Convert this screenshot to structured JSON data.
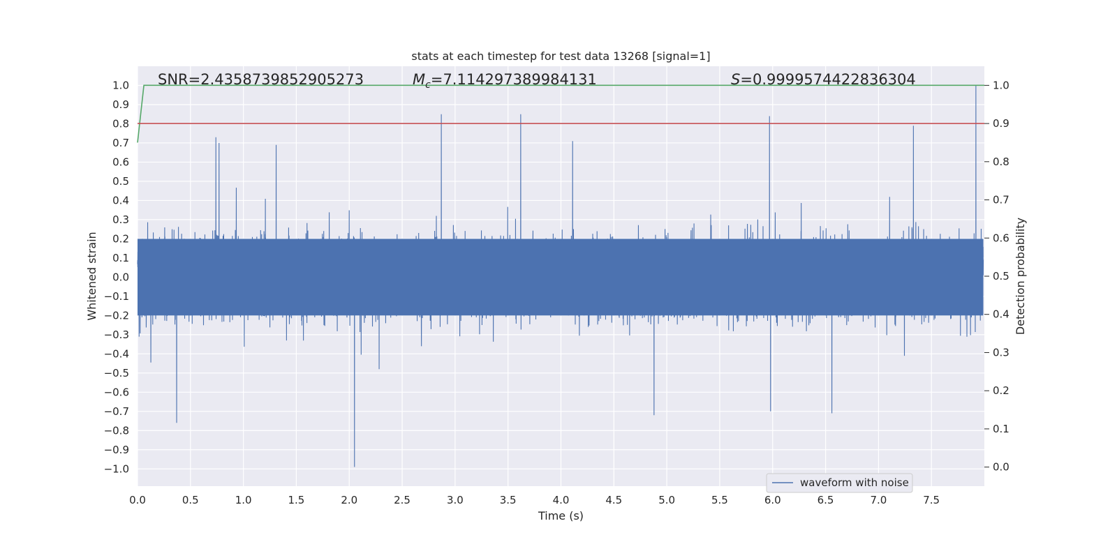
{
  "chart_data": {
    "type": "line",
    "title": "stats at each timestep for test data 13268 [signal=1]",
    "xlabel": "Time (s)",
    "ylabel_left": "Whitened strain",
    "ylabel_right": "Detection probability",
    "xlim": [
      0.0,
      8.0
    ],
    "ylim_left": [
      -1.09,
      1.1
    ],
    "ylim_right": [
      -0.05,
      1.05
    ],
    "xticks": [
      "0.0",
      "0.5",
      "1.0",
      "1.5",
      "2.0",
      "2.5",
      "3.0",
      "3.5",
      "4.0",
      "4.5",
      "5.0",
      "5.5",
      "6.0",
      "6.5",
      "7.0",
      "7.5"
    ],
    "yticks_left": [
      "1.0",
      "0.9",
      "0.8",
      "0.7",
      "0.6",
      "0.5",
      "0.4",
      "0.3",
      "0.2",
      "0.1",
      "0.0",
      "−0.1",
      "−0.2",
      "−0.3",
      "−0.4",
      "−0.5",
      "−0.6",
      "−0.7",
      "−0.8",
      "−0.9",
      "−1.0"
    ],
    "yticks_right": [
      "1.0",
      "0.9",
      "0.8",
      "0.7",
      "0.6",
      "0.5",
      "0.4",
      "0.3",
      "0.2",
      "0.1",
      "0.0"
    ],
    "grid": true,
    "series": [
      {
        "name": "waveform with noise",
        "axis": "left",
        "color": "#4c72b0",
        "kind": "noise",
        "samples": 8000,
        "core_amplitude": 0.2,
        "typical_envelope": [
          -0.45,
          0.48
        ],
        "peaks": [
          {
            "x": 0.37,
            "y": -0.76
          },
          {
            "x": 0.74,
            "y": 0.73
          },
          {
            "x": 0.77,
            "y": 0.7
          },
          {
            "x": 1.31,
            "y": 0.69
          },
          {
            "x": 2.05,
            "y": -0.99
          },
          {
            "x": 2.87,
            "y": 0.85
          },
          {
            "x": 3.62,
            "y": 0.85
          },
          {
            "x": 4.11,
            "y": 0.71
          },
          {
            "x": 4.88,
            "y": -0.72
          },
          {
            "x": 5.97,
            "y": 0.84
          },
          {
            "x": 5.98,
            "y": -0.7
          },
          {
            "x": 6.56,
            "y": -0.71
          },
          {
            "x": 7.33,
            "y": 0.79
          },
          {
            "x": 7.92,
            "y": 1.0
          }
        ]
      },
      {
        "name": "detection probability",
        "axis": "right",
        "color": "#55a868",
        "x": [
          0.0,
          0.06,
          8.0
        ],
        "y": [
          0.85,
          1.0,
          1.0
        ]
      },
      {
        "name": "threshold",
        "axis": "right",
        "color": "#c44e52",
        "x": [
          0.0,
          8.0
        ],
        "y": [
          0.9,
          0.9
        ]
      }
    ],
    "annotations": {
      "snr": {
        "label": "SNR",
        "value": "2.4358739852905273"
      },
      "mc": {
        "label": "M",
        "subscript": "c",
        "value": "7.114297389984131"
      },
      "s": {
        "label": "S",
        "value": "0.9999574422836304"
      }
    },
    "legend": {
      "position": "lower-right",
      "entries": [
        "waveform with noise"
      ]
    }
  },
  "colors": {
    "background": "#eaeaf2",
    "grid": "#ffffff",
    "waveform": "#4c72b0",
    "probability": "#55a868",
    "threshold": "#c44e52",
    "text": "#262626"
  }
}
